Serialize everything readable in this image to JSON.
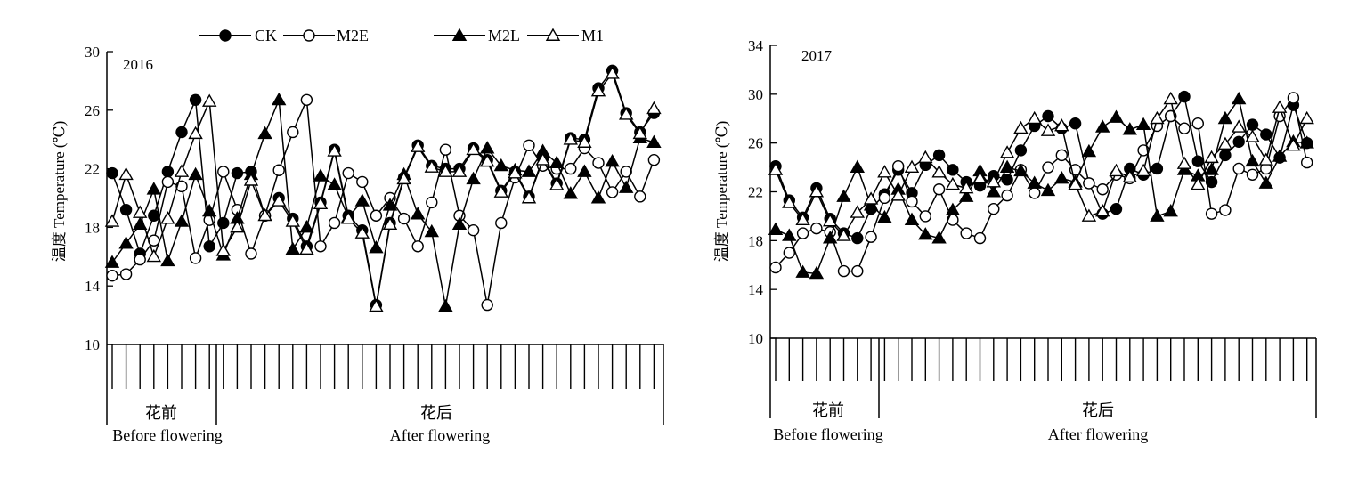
{
  "legend": [
    {
      "name": "CK",
      "marker": "circle-filled"
    },
    {
      "name": "M2E",
      "marker": "circle-open"
    },
    {
      "name": "M2L",
      "marker": "triangle-filled"
    },
    {
      "name": "M1",
      "marker": "triangle-open"
    }
  ],
  "chart_data": [
    {
      "type": "line",
      "panel_label": "2016",
      "ylabel": "温度 Temperature (℃)",
      "ylim": [
        10,
        30
      ],
      "yticks": [
        10,
        14,
        18,
        22,
        26,
        30
      ],
      "x": [
        1,
        2,
        3,
        4,
        5,
        6,
        7,
        8,
        9,
        10,
        11,
        12,
        13,
        14,
        15,
        16,
        17,
        18,
        19,
        20,
        21,
        22,
        23,
        24,
        25,
        26,
        27,
        28,
        29,
        30,
        31,
        32,
        33,
        34,
        35,
        36,
        37,
        38,
        39,
        40
      ],
      "periods": [
        {
          "zh": "花前",
          "en": "Before flowering",
          "from": 1,
          "to": 8
        },
        {
          "zh": "花后",
          "en": "After flowering",
          "from": 9,
          "to": 40
        }
      ],
      "series": [
        {
          "name": "CK",
          "values": [
            21.7,
            19.2,
            16.2,
            18.8,
            21.8,
            24.5,
            26.7,
            16.7,
            18.3,
            21.7,
            21.8,
            18.8,
            20,
            18.6,
            16.7,
            19.7,
            23.3,
            18.8,
            17.8,
            12.7,
            18.3,
            21.4,
            23.6,
            22.2,
            22,
            22,
            23.4,
            22.6,
            20.5,
            21.8,
            20.1,
            22.7,
            21,
            24.1,
            24,
            27.5,
            28.7,
            25.8,
            24.5,
            25.8
          ]
        },
        {
          "name": "M2E",
          "values": [
            14.7,
            14.8,
            15.8,
            17.1,
            21.1,
            20.8,
            15.9,
            18.5,
            21.8,
            19.2,
            16.2,
            18.8,
            21.9,
            24.5,
            26.7,
            16.7,
            18.3,
            21.7,
            21.1,
            18.8,
            20,
            18.6,
            16.7,
            19.7,
            23.3,
            18.8,
            17.8,
            12.7,
            18.3,
            21.4,
            23.6,
            22.2,
            22,
            22,
            23.4,
            22.4,
            20.4,
            21.8,
            20.1,
            22.6
          ]
        },
        {
          "name": "M2L",
          "values": [
            15.6,
            16.9,
            18.2,
            20.6,
            15.7,
            18.4,
            21.6,
            19.1,
            16.1,
            18.6,
            21.6,
            24.4,
            26.7,
            16.5,
            18,
            21.5,
            20.9,
            18.7,
            19.8,
            16.6,
            19.5,
            21.6,
            18.9,
            17.7,
            12.6,
            18.2,
            21.3,
            23.4,
            22.2,
            21.9,
            21.8,
            23.2,
            22.4,
            20.3,
            21.8,
            20,
            22.5,
            20.7,
            24.1,
            23.8
          ]
        },
        {
          "name": "M1",
          "values": [
            18.4,
            21.6,
            19,
            16,
            18.6,
            21.8,
            24.4,
            26.6,
            16.4,
            18,
            21.2,
            18.8,
            19.8,
            18.4,
            16.5,
            19.6,
            23.2,
            18.6,
            17.6,
            12.6,
            18.2,
            21.3,
            23.5,
            22.1,
            21.8,
            21.8,
            23.3,
            22.5,
            20.4,
            21.7,
            20,
            22.6,
            20.9,
            24,
            23.8,
            27.3,
            28.5,
            25.7,
            24.4,
            26.1
          ]
        }
      ]
    },
    {
      "type": "line",
      "panel_label": "2017",
      "ylabel": "温度 Temperature (℃)",
      "ylim": [
        10,
        34
      ],
      "yticks": [
        10,
        14,
        18,
        22,
        26,
        30,
        34
      ],
      "x": [
        1,
        2,
        3,
        4,
        5,
        6,
        7,
        8,
        9,
        10,
        11,
        12,
        13,
        14,
        15,
        16,
        17,
        18,
        19,
        20,
        21,
        22,
        23,
        24,
        25,
        26,
        27,
        28,
        29,
        30,
        31,
        32,
        33,
        34,
        35,
        36,
        37,
        38,
        39,
        40
      ],
      "periods": [
        {
          "zh": "花前",
          "en": "Before flowering",
          "from": 1,
          "to": 8
        },
        {
          "zh": "花后",
          "en": "After flowering",
          "from": 9,
          "to": 40
        }
      ],
      "series": [
        {
          "name": "CK",
          "values": [
            24.1,
            21.3,
            19.9,
            22.3,
            19.8,
            18.6,
            18.2,
            20.6,
            21.8,
            23.8,
            21.9,
            24.2,
            25,
            23.8,
            22.8,
            22.5,
            23.3,
            23,
            25.4,
            27.4,
            28.2,
            27.2,
            27.6,
            22.7,
            20.2,
            20.6,
            23.9,
            23.4,
            23.9,
            28.2,
            29.8,
            24.5,
            22.8,
            25,
            26.1,
            27.5,
            26.7,
            24.8,
            29.1,
            26
          ]
        },
        {
          "name": "M2E",
          "values": [
            15.8,
            17,
            18.6,
            19,
            18.7,
            15.5,
            15.5,
            18.3,
            21.5,
            24.1,
            21.2,
            20,
            22.2,
            19.7,
            18.6,
            18.2,
            20.6,
            21.7,
            23.8,
            21.9,
            24,
            25,
            23.8,
            22.7,
            22.2,
            23.4,
            23.1,
            25.4,
            27.4,
            28.2,
            27.2,
            27.6,
            20.2,
            20.5,
            23.9,
            23.4,
            23.9,
            28.2,
            29.7,
            24.4
          ]
        },
        {
          "name": "M2L",
          "values": [
            18.9,
            18.4,
            15.4,
            15.3,
            18.2,
            21.6,
            24,
            20.9,
            19.9,
            22.2,
            19.7,
            18.5,
            18.2,
            20.5,
            21.6,
            23.7,
            22,
            24,
            23.7,
            22.7,
            22.1,
            23.1,
            22.8,
            25.3,
            27.3,
            28.1,
            27.1,
            27.5,
            20,
            20.4,
            23.8,
            23.3,
            23.8,
            28,
            29.6,
            24.5,
            22.7,
            24.9,
            26.1,
            26
          ]
        },
        {
          "name": "M1",
          "values": [
            23.8,
            21.1,
            19.7,
            22,
            19.6,
            18.4,
            20.3,
            21.4,
            23.6,
            21.7,
            24,
            24.8,
            23.6,
            22.6,
            22.3,
            23.1,
            22.8,
            25.2,
            27.2,
            28,
            27,
            27.4,
            22.6,
            20,
            20.4,
            23.7,
            23.2,
            23.7,
            28,
            29.6,
            24.3,
            22.6,
            24.8,
            25.9,
            27.3,
            26.5,
            24.6,
            28.9,
            25.8,
            28
          ]
        }
      ]
    }
  ]
}
